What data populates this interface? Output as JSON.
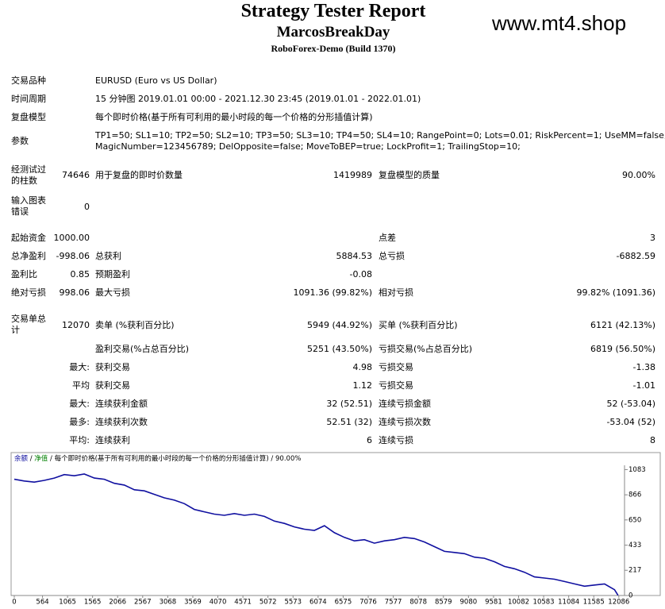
{
  "header": {
    "title": "Strategy Tester Report",
    "subtitle": "MarcosBreakDay",
    "broker": "RoboForex-Demo (Build 1370)",
    "watermark": "www.mt4.shop"
  },
  "info": [
    [
      "交易品种",
      "EURUSD (Euro vs US Dollar)"
    ],
    [
      "时间周期",
      "15 分钟图 2019.01.01 00:00 - 2021.12.30 23:45 (2019.01.01 - 2022.01.01)"
    ],
    [
      "复盘模型",
      "每个即时价格(基于所有可利用的最小时段的每一个价格的分形插值计算)"
    ],
    [
      "参数",
      "TP1=50; SL1=10; TP2=50; SL2=10; TP3=50; SL3=10; TP4=50; SL4=10; RangePoint=0; Lots=0.01; RiskPercent=1; UseMM=false;",
      "MagicNumber=123456789; DelOpposite=false; MoveToBEP=true; LockProfit=1; TrailingStop=10;"
    ]
  ],
  "stats": [
    [
      "经测试过的柱数",
      "74646",
      "用于复盘的即时价数量",
      "1419989",
      "复盘模型的质量",
      "90.00%"
    ],
    [
      "输入图表错误",
      "0"
    ],
    [
      "起始资金",
      "1000.00",
      "点差",
      "3"
    ],
    [
      "总净盈利",
      "-998.06",
      "总获利",
      "5884.53",
      "总亏损",
      "-6882.59"
    ],
    [
      "盈利比",
      "0.85",
      "预期盈利",
      "-0.08"
    ],
    [
      "绝对亏损",
      "998.06",
      "最大亏损",
      "1091.36 (99.82%)",
      "相对亏损",
      "99.82% (1091.36)"
    ],
    [
      "交易单总计",
      "12070",
      "卖单 (%获利百分比)",
      "5949 (44.92%)",
      "买单 (%获利百分比)",
      "6121 (42.13%)"
    ],
    [
      "盈利交易(%占总百分比)",
      "5251 (43.50%)",
      "亏损交易(%占总百分比)",
      "6819 (56.50%)"
    ],
    [
      "最大:",
      "获利交易",
      "4.98",
      "亏损交易",
      "-1.38"
    ],
    [
      "平均",
      "获利交易",
      "1.12",
      "亏损交易",
      "-1.01"
    ],
    [
      "最大:",
      "连续获利金额",
      "32 (52.51)",
      "连续亏损金额",
      "52 (-53.04)"
    ],
    [
      "最多:",
      "连续获利次数",
      "52.51 (32)",
      "连续亏损次数",
      "-53.04 (52)"
    ],
    [
      "平均:",
      "连续获利",
      "6",
      "连续亏损",
      "8"
    ]
  ],
  "chart_data": {
    "type": "line",
    "equity_label": "净值",
    "equity_color": "#008000",
    "x": [
      0,
      200,
      400,
      600,
      800,
      1000,
      1200,
      1400,
      1600,
      1800,
      2000,
      2200,
      2400,
      2600,
      2800,
      3000,
      3200,
      3400,
      3600,
      3800,
      4000,
      4200,
      4400,
      4600,
      4800,
      5000,
      5200,
      5400,
      5600,
      5800,
      6000,
      6200,
      6400,
      6600,
      6800,
      7000,
      7200,
      7400,
      7600,
      7800,
      8000,
      8200,
      8400,
      8600,
      8800,
      9000,
      9200,
      9400,
      9600,
      9800,
      10000,
      10200,
      10400,
      10600,
      10800,
      11000,
      11200,
      11400,
      11600,
      11800,
      12000,
      12070
    ],
    "series": [
      {
        "name": "余额",
        "color": "#1010a0",
        "values": [
          1000,
          985,
          975,
          990,
          1010,
          1040,
          1030,
          1045,
          1010,
          1000,
          965,
          950,
          910,
          900,
          870,
          840,
          820,
          790,
          740,
          720,
          700,
          690,
          705,
          690,
          700,
          680,
          640,
          620,
          590,
          570,
          560,
          600,
          540,
          500,
          470,
          480,
          450,
          470,
          480,
          500,
          490,
          460,
          420,
          380,
          370,
          360,
          330,
          320,
          290,
          250,
          230,
          200,
          160,
          150,
          140,
          120,
          100,
          80,
          90,
          100,
          50,
          1.94
        ]
      }
    ],
    "xlim": [
      0,
      12200
    ],
    "xticks": [
      0,
      564,
      1065,
      1565,
      2066,
      2567,
      3068,
      3569,
      4070,
      4571,
      5072,
      5573,
      6074,
      6575,
      7076,
      7577,
      8078,
      8579,
      9080,
      9581,
      10082,
      10583,
      11084,
      11585,
      12086
    ],
    "ylim": [
      0,
      1120
    ],
    "yticks": [
      0,
      217,
      433,
      650,
      866,
      1083
    ]
  }
}
